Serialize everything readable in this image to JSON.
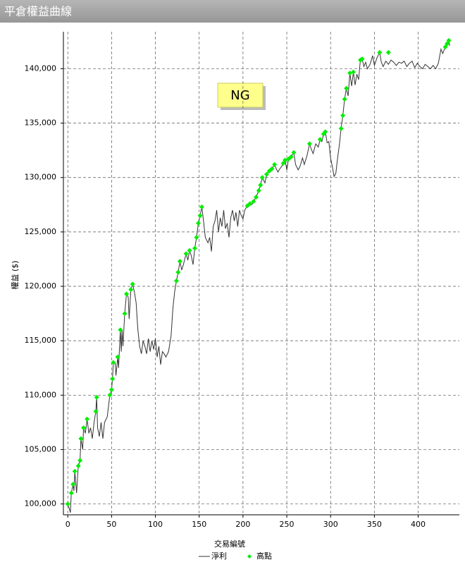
{
  "chart_data": {
    "type": "line",
    "title": "平倉權益曲線",
    "x_label": "交易編號",
    "y_label": "權益 ($)",
    "annotation": "NG",
    "xlim": [
      -5,
      447
    ],
    "xticks": [
      0,
      50,
      100,
      150,
      200,
      250,
      300,
      350,
      400
    ],
    "ylim": [
      99000,
      143400
    ],
    "yticks": [
      {
        "value": 100000,
        "label": "100,000"
      },
      {
        "value": 105000,
        "label": "105,000"
      },
      {
        "value": 110000,
        "label": "110,000"
      },
      {
        "value": 115000,
        "label": "115,000"
      },
      {
        "value": 120000,
        "label": "120,000"
      },
      {
        "value": 125000,
        "label": "125,000"
      },
      {
        "value": 130000,
        "label": "130,000"
      },
      {
        "value": 135000,
        "label": "135,000"
      },
      {
        "value": 140000,
        "label": "140,000"
      }
    ],
    "grid": true,
    "legend": "bottom",
    "series": [
      {
        "name": "淨利",
        "type": "line",
        "color": "#333333",
        "x": [
          0,
          2,
          3,
          4,
          6,
          7,
          8,
          10,
          12,
          14,
          15,
          17,
          18,
          20,
          22,
          24,
          26,
          28,
          30,
          32,
          33,
          34,
          36,
          38,
          40,
          42,
          45,
          48,
          50,
          51,
          52,
          54,
          55,
          57,
          58,
          60,
          61,
          62,
          63,
          65,
          67,
          69,
          70,
          72,
          74,
          76,
          78,
          80,
          82,
          84,
          86,
          88,
          90,
          92,
          94,
          96,
          98,
          100,
          102,
          104,
          106,
          108,
          110,
          112,
          115,
          118,
          120,
          122,
          124,
          126,
          128,
          130,
          132,
          135,
          137,
          139,
          141,
          143,
          145,
          147,
          149,
          151,
          153,
          155,
          157,
          160,
          162,
          164,
          166,
          168,
          170,
          172,
          174,
          176,
          178,
          180,
          182,
          184,
          186,
          188,
          190,
          192,
          194,
          196,
          198,
          200,
          202,
          205,
          208,
          210,
          212,
          215,
          218,
          220,
          222,
          225,
          227,
          230,
          233,
          236,
          238,
          240,
          242,
          244,
          246,
          248,
          250,
          252,
          255,
          258,
          260,
          263,
          265,
          268,
          270,
          273,
          276,
          278,
          280,
          283,
          286,
          288,
          290,
          292,
          294,
          296,
          298,
          300,
          302,
          304,
          306,
          308,
          310,
          312,
          314,
          316,
          318,
          320,
          322,
          324,
          326,
          328,
          330,
          332,
          334,
          336,
          338,
          340,
          342,
          345,
          348,
          350,
          353,
          356,
          358,
          360,
          363,
          366,
          369,
          372,
          375,
          378,
          381,
          384,
          387,
          390,
          393,
          396,
          399,
          402,
          405,
          408,
          411,
          414,
          417,
          420,
          423,
          426,
          428,
          431,
          433,
          435,
          436
        ],
        "values": [
          100000,
          99500,
          99200,
          101000,
          101800,
          101200,
          103000,
          101000,
          103500,
          104000,
          106000,
          105000,
          107000,
          106500,
          107800,
          106500,
          107000,
          106000,
          107500,
          108500,
          109800,
          107000,
          106200,
          107500,
          106000,
          107500,
          108000,
          110000,
          110500,
          111500,
          113000,
          113000,
          111800,
          113500,
          112500,
          116000,
          114000,
          116000,
          114500,
          117500,
          119300,
          119000,
          117000,
          119700,
          120200,
          119500,
          118500,
          116000,
          114500,
          113800,
          115000,
          114500,
          113800,
          115200,
          114000,
          115000,
          114200,
          115200,
          113500,
          114500,
          112800,
          114000,
          113800,
          113500,
          114000,
          115500,
          118000,
          119500,
          120500,
          121300,
          122300,
          121500,
          122000,
          123000,
          122400,
          123300,
          122800,
          122000,
          123500,
          124500,
          125800,
          126500,
          127300,
          126000,
          124500,
          124000,
          124500,
          123200,
          125500,
          126000,
          127000,
          125000,
          126300,
          125500,
          127000,
          125300,
          125800,
          124500,
          126300,
          127000,
          126000,
          126800,
          125500,
          127000,
          126500,
          126200,
          127000,
          127400,
          127600,
          127500,
          127800,
          128200,
          128800,
          129300,
          130000,
          129500,
          130300,
          130600,
          130800,
          131200,
          130800,
          130500,
          130800,
          131000,
          131300,
          131600,
          130700,
          131700,
          131900,
          132300,
          131200,
          130700,
          131000,
          131800,
          131200,
          132000,
          133100,
          132600,
          132200,
          133100,
          132800,
          133500,
          133300,
          134000,
          134200,
          133200,
          133300,
          131800,
          131000,
          130100,
          130400,
          131800,
          133000,
          134500,
          135700,
          137200,
          138200,
          137500,
          139600,
          138400,
          139700,
          138500,
          139500,
          139000,
          140800,
          140900,
          140200,
          140600,
          140000,
          140400,
          141200,
          140300,
          141000,
          141500,
          140600,
          140200,
          140700,
          140400,
          140800,
          140600,
          140300,
          140600,
          140500,
          140700,
          140200,
          140500,
          140700,
          140100,
          140500,
          140200,
          140000,
          140400,
          140200,
          140000,
          140300,
          140000,
          140500,
          141800,
          141400,
          142000,
          142300,
          142600,
          142100
        ]
      },
      {
        "name": "高點",
        "type": "scatter",
        "color": "#00ee00",
        "x": [
          0,
          4,
          6,
          8,
          12,
          14,
          15,
          18,
          22,
          32,
          33,
          48,
          50,
          51,
          52,
          57,
          60,
          65,
          67,
          72,
          74,
          124,
          126,
          128,
          135,
          139,
          145,
          147,
          149,
          151,
          153,
          205,
          208,
          212,
          215,
          218,
          220,
          222,
          227,
          230,
          233,
          236,
          246,
          248,
          252,
          255,
          258,
          276,
          288,
          292,
          294,
          312,
          314,
          316,
          318,
          322,
          326,
          334,
          336,
          356,
          366,
          431,
          433,
          435
        ],
        "values": [
          100000,
          101000,
          101800,
          103000,
          103500,
          104000,
          106000,
          107000,
          107800,
          108500,
          109800,
          110000,
          110500,
          111500,
          113000,
          113500,
          116000,
          117500,
          119300,
          119700,
          120200,
          120500,
          121300,
          122300,
          123000,
          123300,
          123500,
          124500,
          125800,
          126500,
          127300,
          127400,
          127600,
          127800,
          128200,
          128800,
          129300,
          130000,
          130300,
          130600,
          130800,
          131200,
          131300,
          131600,
          131700,
          131900,
          132300,
          133100,
          133500,
          134000,
          134200,
          134500,
          135700,
          137200,
          138200,
          139600,
          139700,
          140800,
          140900,
          141500,
          141500,
          142000,
          142300,
          142600
        ]
      }
    ]
  }
}
